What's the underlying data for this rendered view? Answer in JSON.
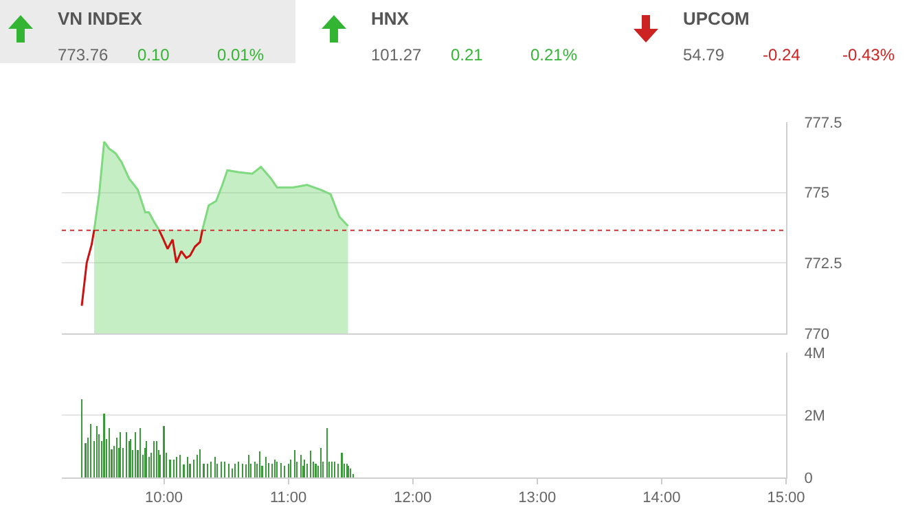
{
  "chart_data": [
    {
      "type": "area",
      "annotations": [
        "VN INDEX",
        "773.76",
        "0.10",
        "0.01%",
        "HNX",
        "101.27",
        "0.21",
        "0.21%",
        "UPCOM",
        "54.79",
        "-0.24",
        "-0.43%"
      ],
      "x": [
        9.34,
        9.38,
        9.42,
        9.44,
        9.48,
        9.52,
        9.56,
        9.61,
        9.66,
        9.72,
        9.79,
        9.85,
        9.88,
        9.92,
        9.96,
        9.99,
        10.03,
        10.07,
        10.1,
        10.14,
        10.18,
        10.21,
        10.25,
        10.29,
        10.31,
        10.36,
        10.42,
        10.47,
        10.51,
        10.6,
        10.71,
        10.78,
        10.86,
        10.91,
        11.04,
        11.15,
        11.26,
        11.34,
        11.41,
        11.48
      ],
      "series": [
        {
          "color": "#7fd97f",
          "values": [
            null,
            null,
            null,
            773.68,
            774.94,
            776.8,
            776.56,
            776.4,
            776.08,
            775.5,
            775.1,
            774.3,
            774.3,
            773.97,
            773.68,
            null,
            null,
            null,
            null,
            null,
            null,
            null,
            null,
            null,
            773.68,
            774.54,
            774.7,
            775.27,
            775.79,
            775.72,
            775.67,
            775.91,
            775.5,
            775.18,
            775.18,
            775.27,
            775.1,
            774.94,
            774.14,
            773.81
          ]
        },
        {
          "type": "line",
          "color": "#cc1111",
          "values": [
            770.98,
            772.51,
            773.16,
            773.68,
            null,
            null,
            null,
            null,
            null,
            null,
            null,
            null,
            null,
            null,
            773.68,
            773.4,
            773.0,
            773.33,
            772.51,
            772.92,
            772.68,
            772.76,
            773.08,
            773.24,
            773.68,
            null,
            null,
            null,
            null,
            null,
            null,
            null,
            null,
            null,
            null,
            null,
            null,
            null,
            null,
            null
          ]
        }
      ],
      "xlim": [
        9.18,
        15.0
      ],
      "ylim": [
        770,
        777.5
      ],
      "yticks": [
        770,
        772.5,
        775,
        777.5
      ],
      "ref_lines": [
        {
          "axis": "y",
          "value": 773.66,
          "color": "#cc3333",
          "line_style": "dotted"
        }
      ],
      "grid": "y",
      "legend": false,
      "tick_labels": "y"
    },
    {
      "type": "bar",
      "x": [
        9.34,
        9.37,
        9.39,
        9.41,
        9.44,
        9.46,
        9.48,
        9.5,
        9.52,
        9.54,
        9.56,
        9.58,
        9.6,
        9.62,
        9.64,
        9.65,
        9.67,
        9.7,
        9.72,
        9.73,
        9.75,
        9.77,
        9.79,
        9.81,
        9.83,
        9.85,
        9.86,
        9.88,
        9.9,
        9.92,
        9.94,
        9.96,
        9.97,
        10.0,
        10.02,
        10.05,
        10.08,
        10.1,
        10.13,
        10.16,
        10.19,
        10.21,
        10.24,
        10.27,
        10.29,
        10.32,
        10.35,
        10.38,
        10.41,
        10.43,
        10.46,
        10.49,
        10.52,
        10.55,
        10.57,
        10.6,
        10.63,
        10.66,
        10.68,
        10.7,
        10.73,
        10.75,
        10.77,
        10.79,
        10.82,
        10.84,
        10.87,
        10.89,
        10.91,
        10.94,
        10.97,
        11.0,
        11.02,
        11.05,
        11.07,
        11.1,
        11.12,
        11.13,
        11.15,
        11.18,
        11.2,
        11.22,
        11.24,
        11.26,
        11.28,
        11.31,
        11.33,
        11.35,
        11.37,
        11.4,
        11.43,
        11.45,
        11.47,
        11.48,
        11.5,
        11.52
      ],
      "values": [
        2.51,
        1.09,
        1.28,
        1.72,
        1.17,
        1.64,
        1.39,
        1.17,
        2.04,
        1.24,
        1.58,
        0.91,
        1.02,
        1.28,
        0.95,
        1.46,
        0.95,
        1.46,
        1.17,
        1.24,
        0.88,
        1.46,
        0.88,
        1.58,
        0.73,
        0.95,
        1.17,
        0.66,
        0.8,
        1.17,
        1.17,
        0.88,
        0.73,
        1.65,
        0.8,
        0.58,
        0.58,
        0.66,
        0.73,
        0.41,
        0.66,
        0.44,
        0.58,
        0.73,
        0.91,
        0.44,
        0.44,
        0.51,
        0.66,
        0.44,
        0.51,
        0.51,
        0.44,
        0.29,
        0.44,
        0.51,
        0.44,
        0.41,
        0.73,
        0.44,
        0.51,
        0.44,
        0.83,
        0.37,
        0.66,
        0.47,
        0.44,
        0.58,
        0.51,
        0.47,
        0.37,
        0.44,
        0.58,
        0.88,
        0.51,
        0.73,
        0.37,
        0.58,
        0.44,
        0.85,
        0.51,
        0.44,
        0.37,
        0.95,
        0.51,
        1.58,
        0.51,
        0.51,
        0.51,
        0.44,
        0.8,
        0.44,
        0.44,
        0.37,
        0.29,
        0.12
      ],
      "color": "#3a9a3a",
      "xlim": [
        9.18,
        15.0
      ],
      "xticks": [
        {
          "value": 10,
          "label": "10:00"
        },
        {
          "value": 11,
          "label": "11:00"
        },
        {
          "value": 12,
          "label": "12:00"
        },
        {
          "value": 13,
          "label": "13:00"
        },
        {
          "value": 14,
          "label": "14:00"
        },
        {
          "value": 15,
          "label": "15:00"
        }
      ],
      "ylim": [
        0,
        4
      ],
      "yticks": [
        0,
        {
          "value": 2,
          "label": "2M"
        },
        {
          "value": 4,
          "label": "4M"
        }
      ],
      "grid": "y",
      "legend": false
    }
  ]
}
